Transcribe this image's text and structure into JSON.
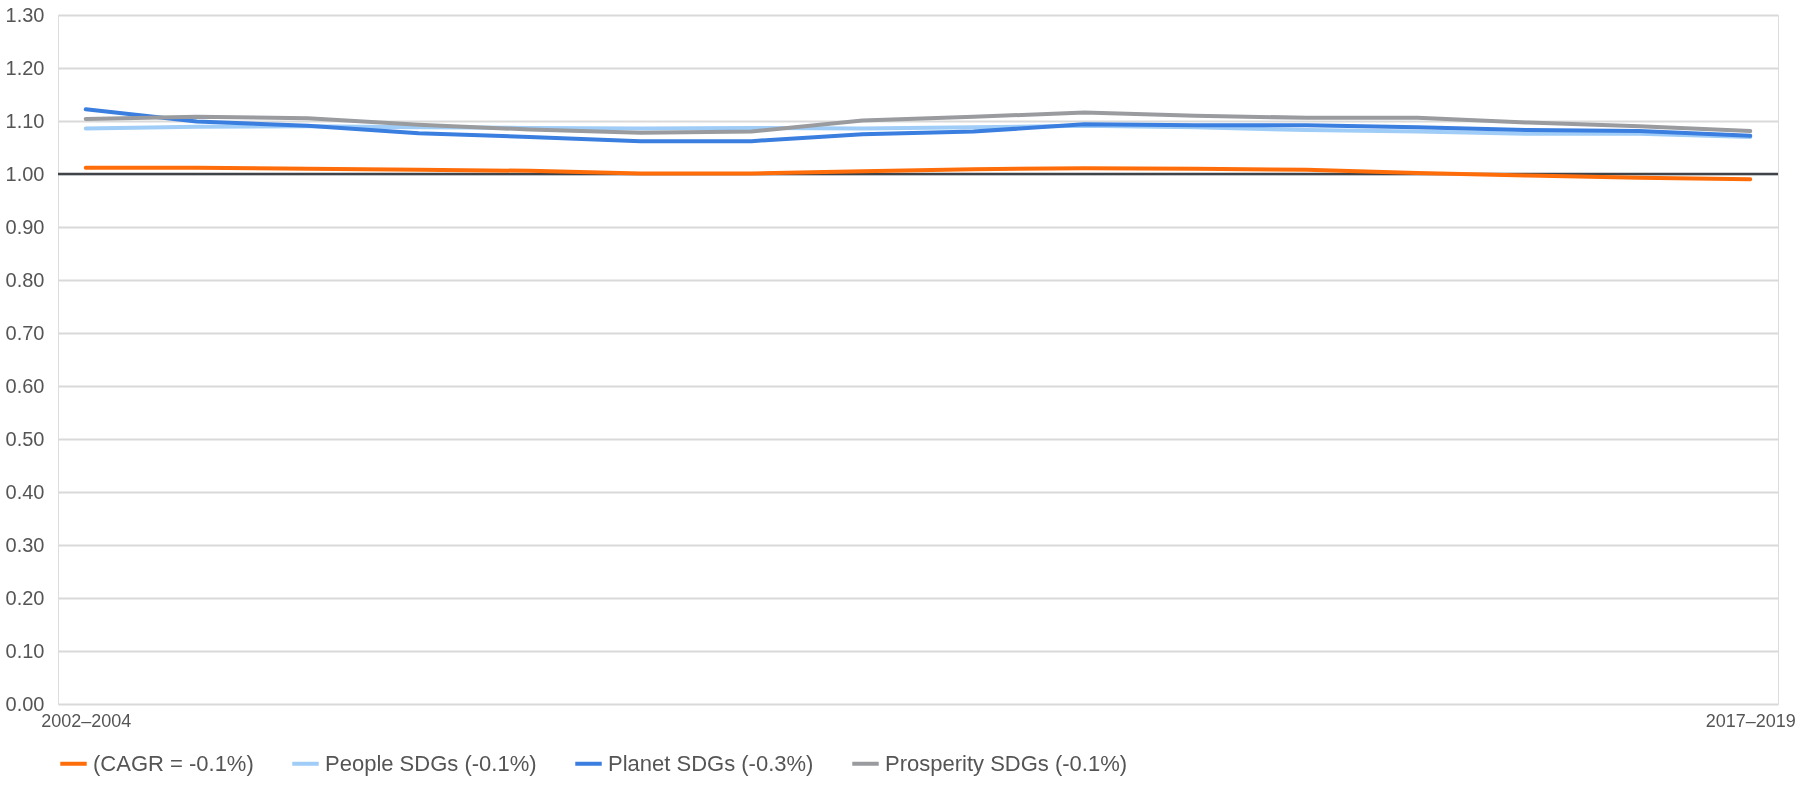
{
  "chart_data": {
    "type": "line",
    "categories": [
      "2002–2004",
      null,
      null,
      null,
      null,
      null,
      null,
      null,
      null,
      null,
      null,
      null,
      null,
      null,
      null,
      "2017–2019"
    ],
    "series": [
      {
        "name": "(CAGR = -0.1%)",
        "color": "#ff6d0a",
        "values": [
          1.012,
          1.012,
          1.01,
          1.008,
          1.006,
          1.001,
          1.001,
          1.005,
          1.009,
          1.011,
          1.01,
          1.008,
          1.002,
          0.997,
          0.993,
          0.99
        ]
      },
      {
        "name": "People SDGs (-0.1%)",
        "color": "#9fcdf7",
        "values": [
          1.086,
          1.089,
          1.09,
          1.088,
          1.087,
          1.086,
          1.087,
          1.086,
          1.088,
          1.091,
          1.088,
          1.083,
          1.08,
          1.076,
          1.076,
          1.07
        ]
      },
      {
        "name": "Planet SDGs (-0.3%)",
        "color": "#3a7ee0",
        "values": [
          1.122,
          1.099,
          1.091,
          1.077,
          1.07,
          1.062,
          1.062,
          1.075,
          1.08,
          1.094,
          1.092,
          1.092,
          1.088,
          1.083,
          1.081,
          1.072
        ]
      },
      {
        "name": "Prosperity SDGs (-0.1%)",
        "color": "#999b9e",
        "values": [
          1.104,
          1.108,
          1.105,
          1.093,
          1.084,
          1.078,
          1.08,
          1.101,
          1.108,
          1.116,
          1.11,
          1.106,
          1.106,
          1.097,
          1.09,
          1.081
        ]
      }
    ],
    "ylim": [
      0,
      1.3
    ],
    "yticks": [
      {
        "value": 0,
        "label": "0.00"
      },
      {
        "value": 0.1,
        "label": "0.10"
      },
      {
        "value": 0.2,
        "label": "0.20"
      },
      {
        "value": 0.3,
        "label": "0.30"
      },
      {
        "value": 0.4,
        "label": "0.40"
      },
      {
        "value": 0.5,
        "label": "0.50"
      },
      {
        "value": 0.6,
        "label": "0.60"
      },
      {
        "value": 0.7,
        "label": "0.70"
      },
      {
        "value": 0.8,
        "label": "0.80"
      },
      {
        "value": 0.9,
        "label": "0.90"
      },
      {
        "value": 1.0,
        "label": "1.00"
      },
      {
        "value": 1.1,
        "label": "1.10"
      },
      {
        "value": 1.2,
        "label": "1.20"
      },
      {
        "value": 1.3,
        "label": "1.30"
      }
    ],
    "ref_lines": [
      {
        "axis": "y",
        "value": 1.0,
        "color": "#404448"
      }
    ],
    "grid": "y",
    "legend": "bottom",
    "marker": "none",
    "line_style": "solid"
  }
}
